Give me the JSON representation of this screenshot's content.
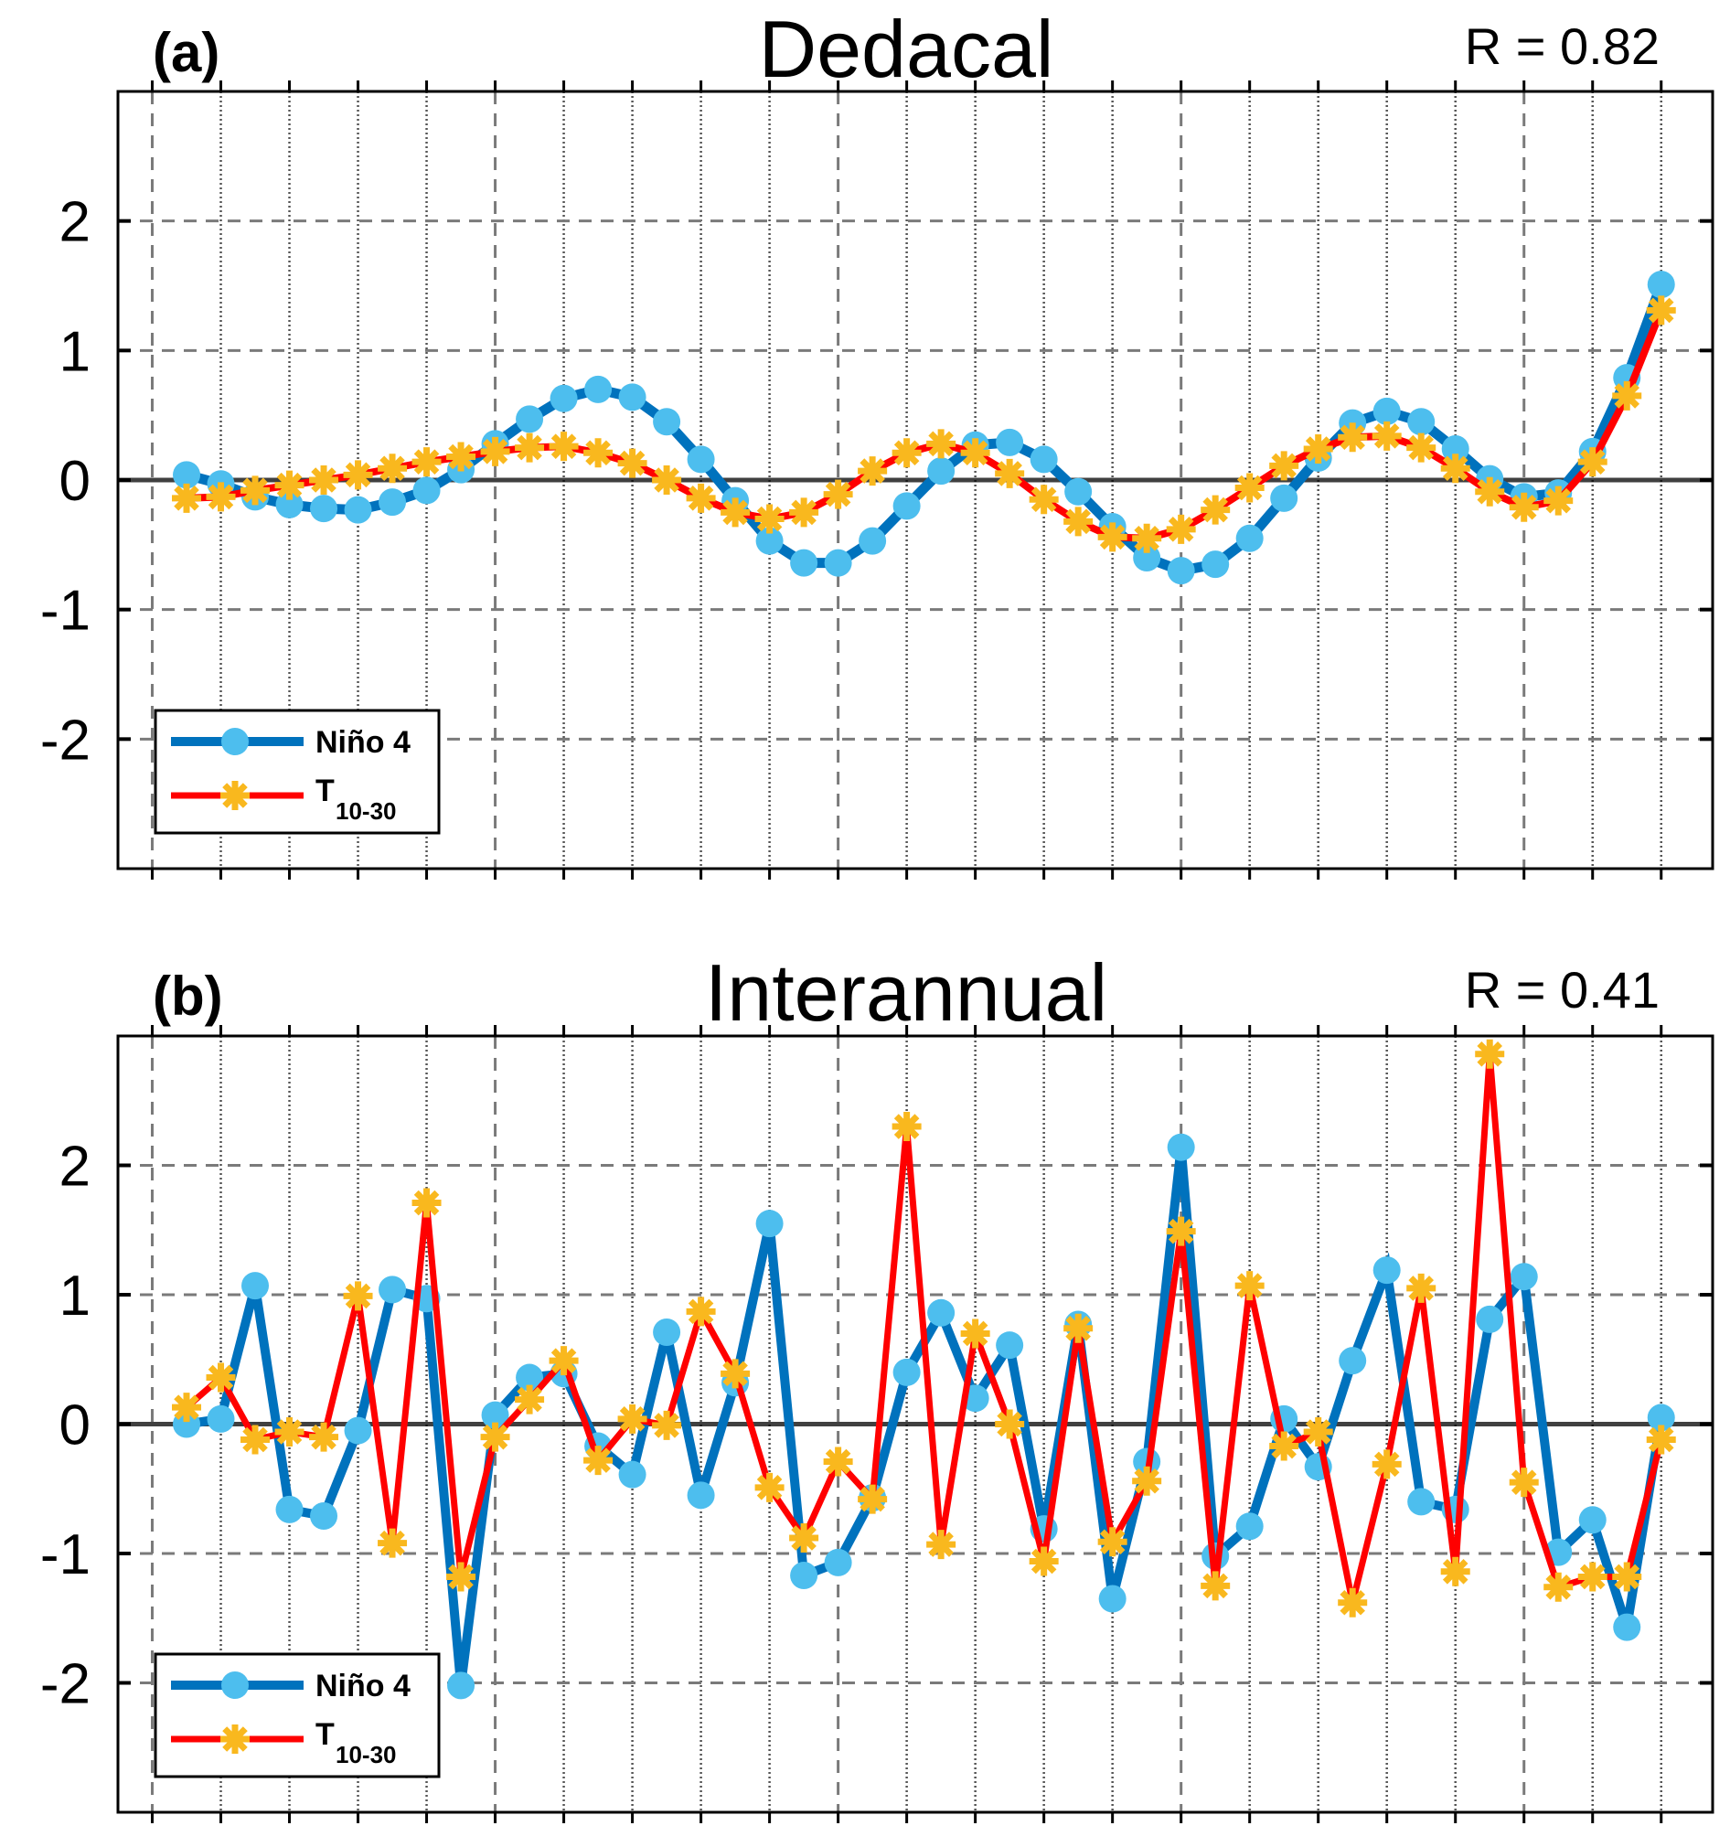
{
  "colors": {
    "nino_line": "#0072BD",
    "nino_marker": "#4DBEEE",
    "t_line": "#FF0000",
    "t_marker": "#F9B81E"
  },
  "chart_data": [
    {
      "type": "line",
      "panel_label": "(a)",
      "title": "Dedacal",
      "annotation": "R = 0.82",
      "xlabel": "",
      "ylabel": "",
      "xlim": [
        -1,
        45.5
      ],
      "ylim": [
        -3,
        3
      ],
      "yticks": [
        2,
        1,
        0,
        -1,
        -2
      ],
      "ytick_labels": [
        "2",
        "1",
        "0",
        "-1",
        "-2"
      ],
      "xgrid_minor_step": 2,
      "xgrid_major_step": 10,
      "grid": true,
      "legend_position": "bottom-left",
      "legend": [
        {
          "label": "Niño 4",
          "sub": ""
        },
        {
          "label": "T",
          "sub": "10-30"
        }
      ],
      "x": [
        1,
        2,
        3,
        4,
        5,
        6,
        7,
        8,
        9,
        10,
        11,
        12,
        13,
        14,
        15,
        16,
        17,
        18,
        19,
        20,
        21,
        22,
        23,
        24,
        25,
        26,
        27,
        28,
        29,
        30,
        31,
        32,
        33,
        34,
        35,
        36,
        37,
        38,
        39,
        40,
        41,
        42,
        43,
        44
      ],
      "series": [
        {
          "name": "Niño 4",
          "values": [
            0.04,
            -0.03,
            -0.13,
            -0.19,
            -0.22,
            -0.23,
            -0.17,
            -0.08,
            0.08,
            0.28,
            0.47,
            0.63,
            0.7,
            0.64,
            0.45,
            0.16,
            -0.16,
            -0.47,
            -0.64,
            -0.64,
            -0.47,
            -0.2,
            0.07,
            0.27,
            0.29,
            0.16,
            -0.09,
            -0.36,
            -0.6,
            -0.7,
            -0.65,
            -0.45,
            -0.14,
            0.17,
            0.44,
            0.53,
            0.45,
            0.24,
            0.01,
            -0.13,
            -0.1,
            0.22,
            0.79,
            1.51
          ]
        },
        {
          "name": "T10-30",
          "values": [
            -0.14,
            -0.13,
            -0.08,
            -0.04,
            0.0,
            0.04,
            0.09,
            0.14,
            0.18,
            0.22,
            0.25,
            0.26,
            0.21,
            0.13,
            0.0,
            -0.14,
            -0.25,
            -0.3,
            -0.25,
            -0.11,
            0.07,
            0.21,
            0.28,
            0.21,
            0.05,
            -0.15,
            -0.32,
            -0.44,
            -0.45,
            -0.38,
            -0.23,
            -0.06,
            0.11,
            0.24,
            0.33,
            0.34,
            0.25,
            0.09,
            -0.09,
            -0.21,
            -0.16,
            0.14,
            0.65,
            1.31
          ]
        }
      ]
    },
    {
      "type": "line",
      "panel_label": "(b)",
      "title": "Interannual",
      "annotation": "R = 0.41",
      "xlabel": "",
      "ylabel": "",
      "xlim": [
        -1,
        45.5
      ],
      "ylim": [
        -3,
        3
      ],
      "yticks": [
        2,
        1,
        0,
        -1,
        -2
      ],
      "ytick_labels": [
        "2",
        "1",
        "0",
        "-1",
        "-2"
      ],
      "xgrid_minor_step": 2,
      "xgrid_major_step": 10,
      "grid": true,
      "legend_position": "bottom-left",
      "legend": [
        {
          "label": "Niño 4",
          "sub": ""
        },
        {
          "label": "T",
          "sub": "10-30"
        }
      ],
      "x": [
        1,
        2,
        3,
        4,
        5,
        6,
        7,
        8,
        9,
        10,
        11,
        12,
        13,
        14,
        15,
        16,
        17,
        18,
        19,
        20,
        21,
        22,
        23,
        24,
        25,
        26,
        27,
        28,
        29,
        30,
        31,
        32,
        33,
        34,
        35,
        36,
        37,
        38,
        39,
        40,
        41,
        42,
        43,
        44
      ],
      "series": [
        {
          "name": "Niño 4",
          "values": [
            0.0,
            0.04,
            1.07,
            -0.66,
            -0.71,
            -0.05,
            1.04,
            0.97,
            -2.02,
            0.07,
            0.36,
            0.39,
            -0.17,
            -0.39,
            0.71,
            -0.55,
            0.32,
            1.55,
            -1.17,
            -1.07,
            -0.57,
            0.4,
            0.86,
            0.2,
            0.61,
            -0.81,
            0.77,
            -1.35,
            -0.29,
            2.14,
            -1.02,
            -0.79,
            0.04,
            -0.33,
            0.49,
            1.19,
            -0.6,
            -0.66,
            0.81,
            1.14,
            -0.99,
            -0.74,
            -1.57,
            0.05
          ]
        },
        {
          "name": "T10-30",
          "values": [
            0.13,
            0.36,
            -0.12,
            -0.06,
            -0.1,
            0.99,
            -0.92,
            1.71,
            -1.18,
            -0.1,
            0.19,
            0.49,
            -0.28,
            0.04,
            -0.01,
            0.87,
            0.39,
            -0.49,
            -0.88,
            -0.29,
            -0.58,
            2.3,
            -0.93,
            0.7,
            0.0,
            -1.06,
            0.74,
            -0.91,
            -0.44,
            1.49,
            -1.25,
            1.07,
            -0.17,
            -0.06,
            -1.38,
            -0.31,
            1.05,
            -1.14,
            2.86,
            -0.45,
            -1.26,
            -1.18,
            -1.18,
            -0.12
          ]
        }
      ]
    }
  ]
}
